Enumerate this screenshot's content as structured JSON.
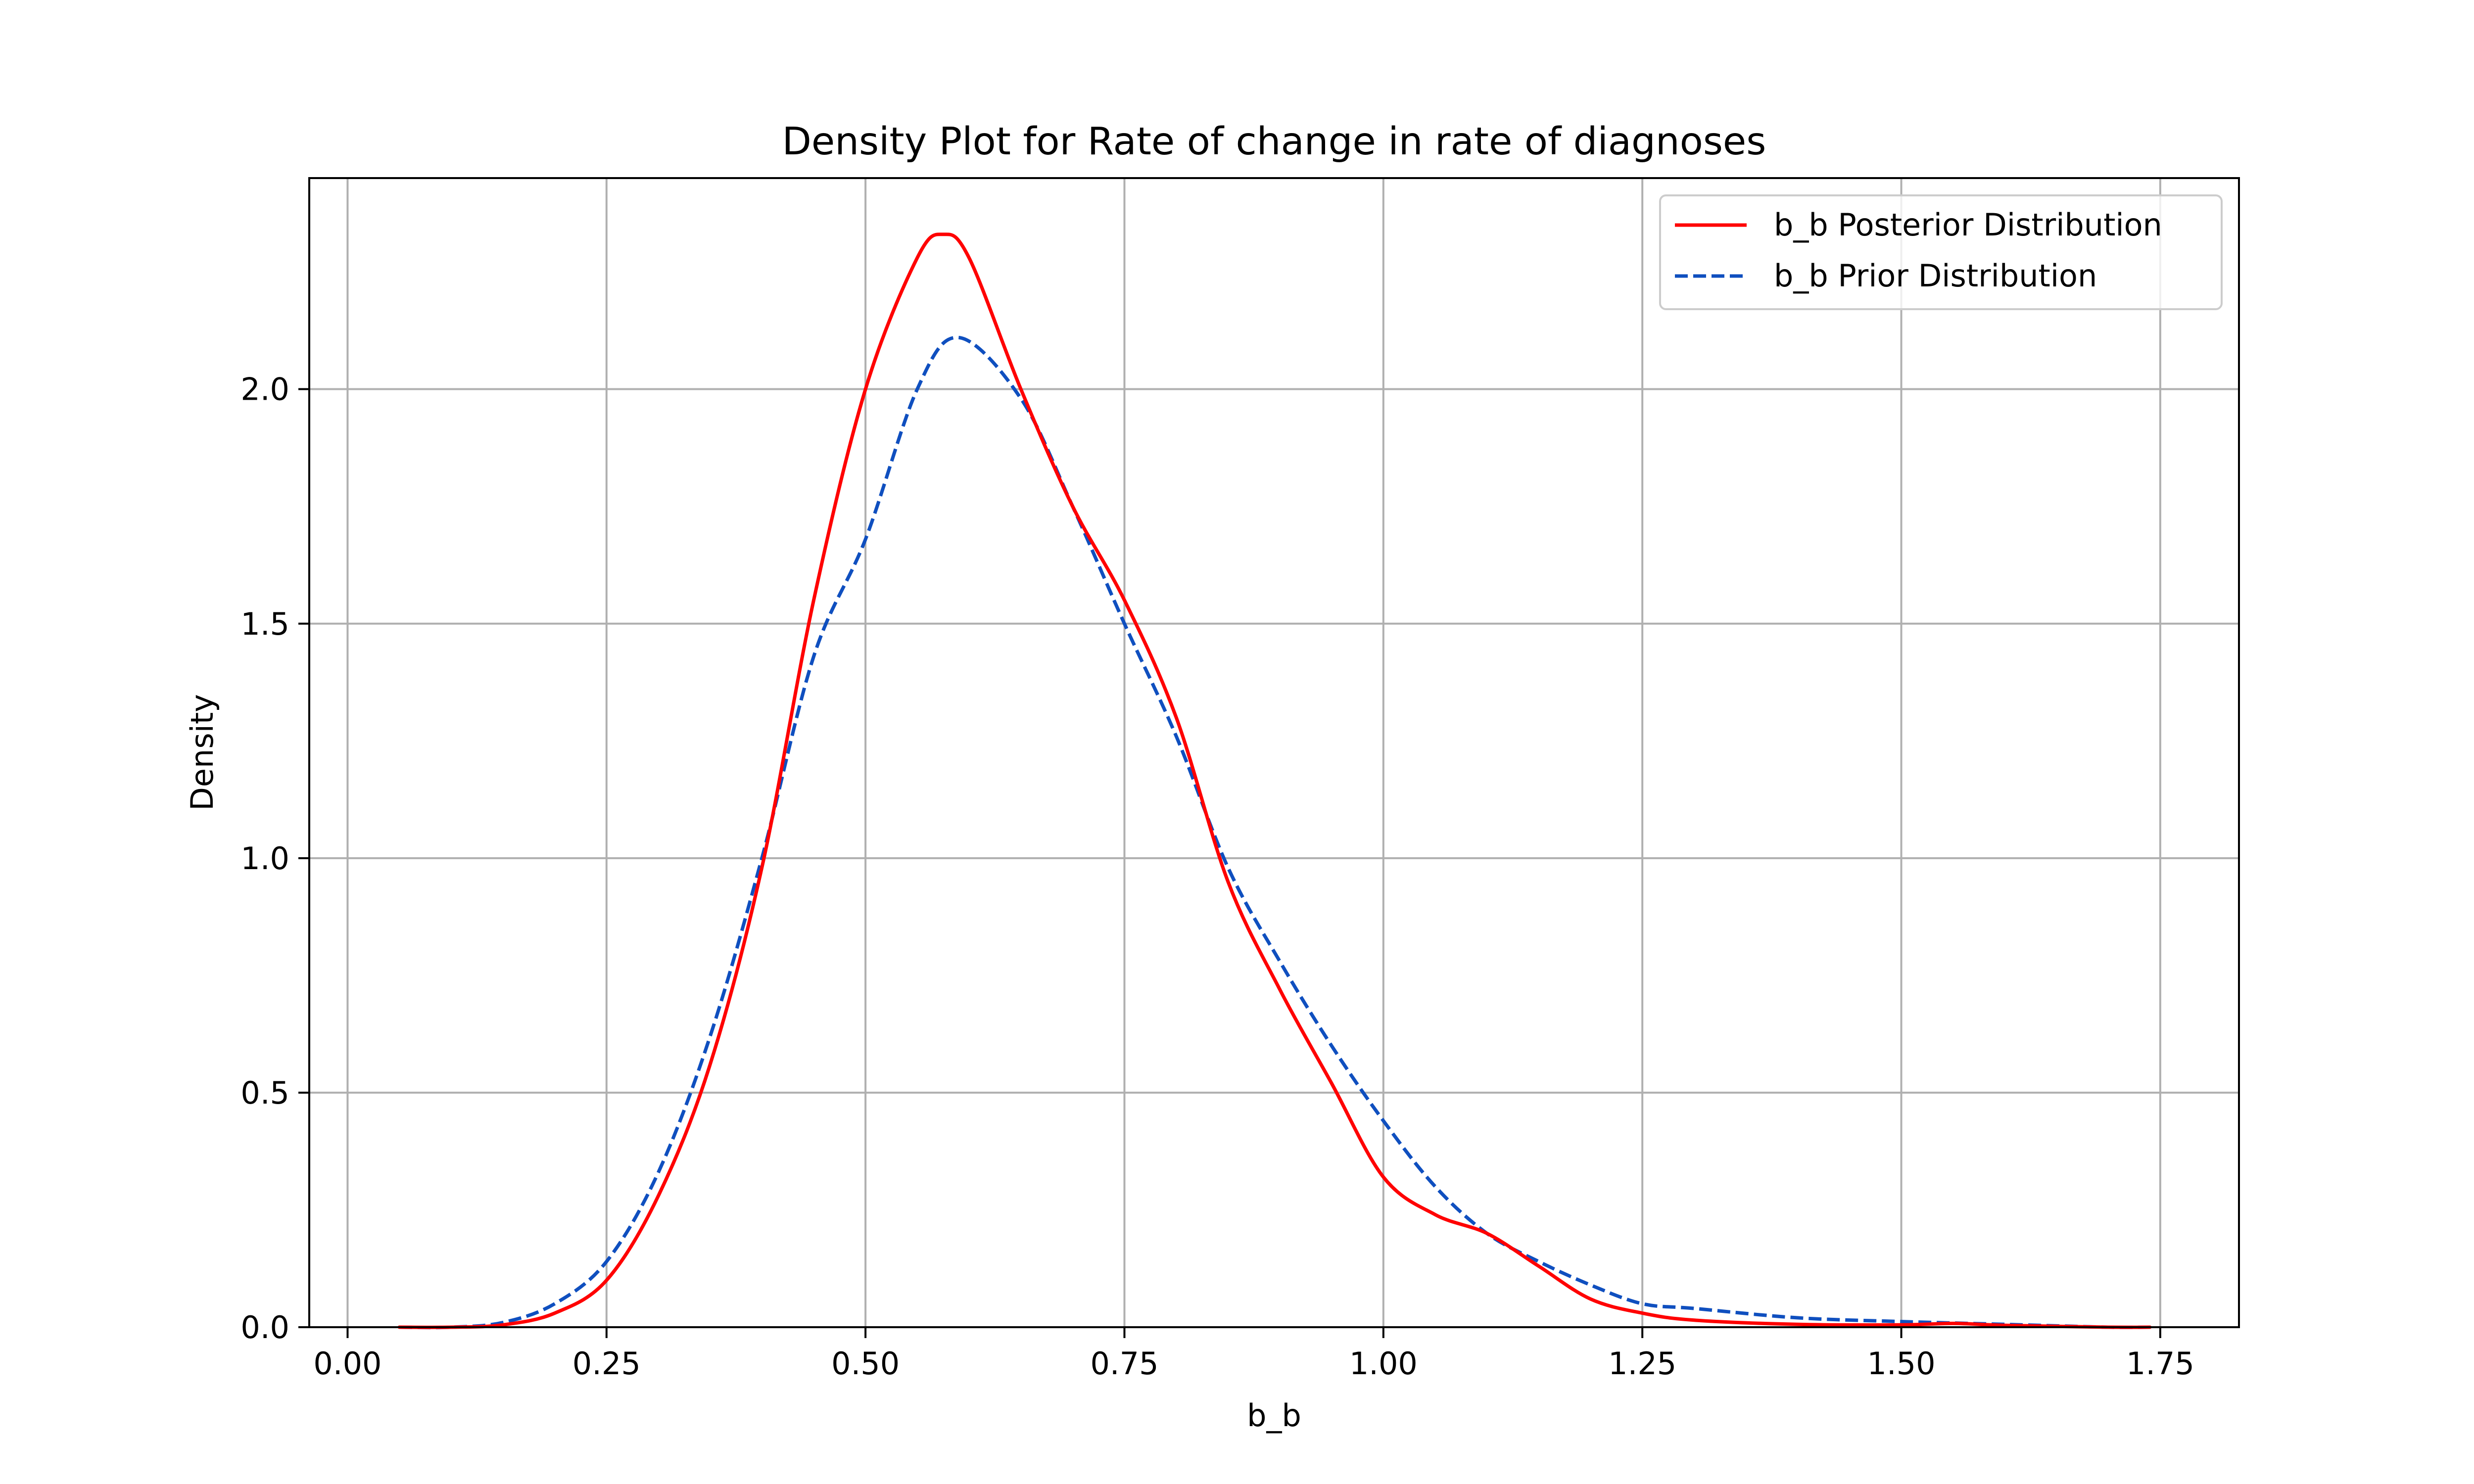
{
  "chart_data": {
    "type": "line",
    "title": "Density Plot for Rate of change in rate of diagnoses",
    "xlabel": "b_b",
    "ylabel": "Density",
    "xlim": [
      -0.037,
      1.826
    ],
    "ylim": [
      0,
      2.45
    ],
    "xticks": [
      0.0,
      0.25,
      0.5,
      0.75,
      1.0,
      1.25,
      1.5,
      1.75
    ],
    "xtick_labels": [
      "0.00",
      "0.25",
      "0.50",
      "0.75",
      "1.00",
      "1.25",
      "1.50",
      "1.75"
    ],
    "yticks": [
      0.0,
      0.5,
      1.0,
      1.5,
      2.0
    ],
    "ytick_labels": [
      "0.0",
      "0.5",
      "1.0",
      "1.5",
      "2.0"
    ],
    "grid": true,
    "legend_position": "top-right",
    "series": [
      {
        "name": "b_b Posterior Distribution",
        "color": "#ff0000",
        "style": "solid",
        "x": [
          0.05,
          0.1,
          0.15,
          0.2,
          0.25,
          0.3,
          0.35,
          0.4,
          0.45,
          0.5,
          0.55,
          0.575,
          0.6,
          0.65,
          0.7,
          0.75,
          0.8,
          0.85,
          0.9,
          0.95,
          1.0,
          1.05,
          1.1,
          1.15,
          1.2,
          1.25,
          1.3,
          1.4,
          1.5,
          1.55,
          1.6,
          1.7,
          1.74
        ],
        "y": [
          0.0,
          0.0,
          0.005,
          0.03,
          0.1,
          0.28,
          0.56,
          0.98,
          1.55,
          2.0,
          2.28,
          2.33,
          2.28,
          2.0,
          1.75,
          1.55,
          1.3,
          0.95,
          0.72,
          0.52,
          0.32,
          0.24,
          0.2,
          0.13,
          0.06,
          0.03,
          0.015,
          0.006,
          0.005,
          0.008,
          0.004,
          0.0,
          0.0
        ]
      },
      {
        "name": "b_b Prior Distribution",
        "color": "#0f4fbf",
        "style": "dashed",
        "x": [
          0.05,
          0.1,
          0.15,
          0.2,
          0.25,
          0.3,
          0.35,
          0.4,
          0.45,
          0.5,
          0.55,
          0.59,
          0.65,
          0.7,
          0.75,
          0.8,
          0.85,
          0.9,
          0.95,
          1.0,
          1.05,
          1.1,
          1.15,
          1.2,
          1.25,
          1.3,
          1.4,
          1.5,
          1.6,
          1.7,
          1.74
        ],
        "y": [
          0.0,
          0.0,
          0.01,
          0.05,
          0.14,
          0.33,
          0.62,
          1.0,
          1.43,
          1.68,
          2.0,
          2.11,
          1.98,
          1.75,
          1.5,
          1.26,
          0.98,
          0.78,
          0.6,
          0.44,
          0.3,
          0.2,
          0.14,
          0.09,
          0.05,
          0.04,
          0.02,
          0.012,
          0.006,
          0.0,
          0.0
        ]
      }
    ]
  }
}
